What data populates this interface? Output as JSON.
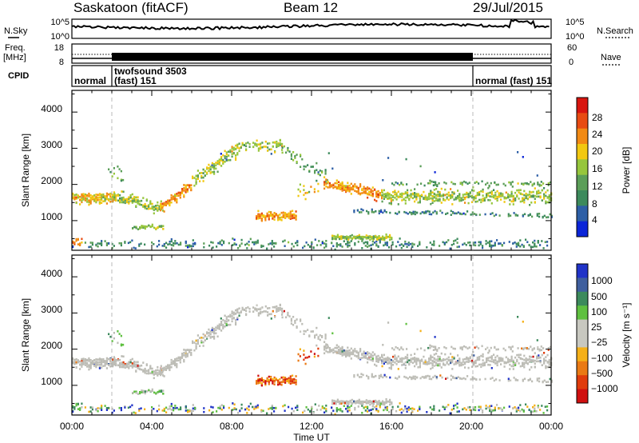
{
  "header": {
    "radar": "Saskatoon",
    "mode": "(fitACF)",
    "beam": "Beam 12",
    "date": "29/Jul/2015"
  },
  "colors": {
    "power": [
      "#0b25d8",
      "#2d5fa6",
      "#3c8a5c",
      "#5b9e58",
      "#96c63c",
      "#f2c811",
      "#f28a14",
      "#e84b12",
      "#d8150f"
    ],
    "velocity": [
      "#2033c8",
      "#3f5f9e",
      "#3c8a5c",
      "#5fc040",
      "#c8c8c0",
      "#c8c8c0",
      "#f5b018",
      "#ea7a14",
      "#e03c0c",
      "#d01010"
    ],
    "ground_scatter": "#bdbdb6"
  },
  "chart_data": [
    {
      "type": "line",
      "name": "noise-panel",
      "left_label": "N.Sky",
      "left_ticks": [
        "10^5",
        "10^0"
      ],
      "right_label": "N.Search",
      "right_ticks": [
        "10^5",
        "10^0"
      ]
    },
    {
      "type": "line",
      "name": "frequency-panel",
      "left_label": "Freq.",
      "left_unit": "[MHz]",
      "left_ticks": [
        "18",
        "8"
      ],
      "right_label": "Nave",
      "right_ticks": [
        "60",
        "0"
      ]
    },
    {
      "type": "table",
      "name": "cpid-panel",
      "label": "CPID",
      "segments": [
        {
          "start": 0.0,
          "end": 2.0,
          "lines": [
            "normal"
          ]
        },
        {
          "start": 2.0,
          "end": 20.0,
          "lines": [
            "twofsound 3503",
            "(fast) 151"
          ]
        },
        {
          "start": 20.0,
          "end": 24.0,
          "lines": [
            "normal (fast) 151"
          ]
        }
      ]
    },
    {
      "type": "heatmap",
      "name": "power-panel",
      "ylabel": "Slant Range [km]",
      "yticks": [
        "1000",
        "2000",
        "3000",
        "4000"
      ],
      "ylim": [
        180,
        4600
      ],
      "xlim": [
        0,
        24
      ],
      "colorbar_label": "Power [dB]",
      "colorbar_ticks": [
        "4",
        "8",
        "12",
        "16",
        "20",
        "24",
        "28"
      ]
    },
    {
      "type": "heatmap",
      "name": "velocity-panel",
      "ylabel": "Slant Range [km]",
      "yticks": [
        "1000",
        "2000",
        "3000",
        "4000"
      ],
      "ylim": [
        180,
        4600
      ],
      "xlim": [
        0,
        24
      ],
      "xlabel": "Time UT",
      "xticks": [
        "00:00",
        "04:00",
        "08:00",
        "12:00",
        "16:00",
        "20:00",
        "00:00"
      ],
      "colorbar_label": "Velocity [m s⁻¹]",
      "colorbar_ticks": [
        "1000",
        "500",
        "100",
        "25",
        "−25",
        "−100",
        "−500",
        "−1000"
      ]
    }
  ]
}
